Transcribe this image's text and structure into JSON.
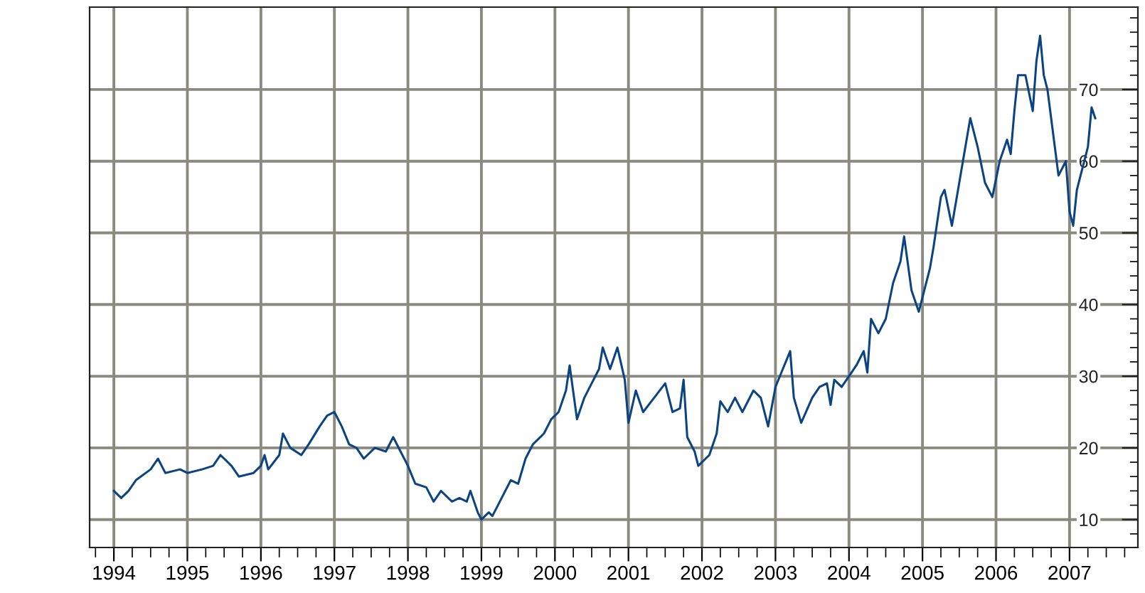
{
  "chart_data": {
    "type": "line",
    "x": [
      1994.0,
      1994.1,
      1994.2,
      1994.3,
      1994.5,
      1994.6,
      1994.7,
      1994.9,
      1995.0,
      1995.2,
      1995.35,
      1995.45,
      1995.6,
      1995.7,
      1995.9,
      1996.0,
      1996.05,
      1996.1,
      1996.25,
      1996.3,
      1996.4,
      1996.55,
      1996.65,
      1996.8,
      1996.9,
      1997.0,
      1997.1,
      1997.2,
      1997.3,
      1997.4,
      1997.55,
      1997.7,
      1997.8,
      1997.9,
      1998.0,
      1998.1,
      1998.25,
      1998.35,
      1998.45,
      1998.6,
      1998.7,
      1998.8,
      1998.85,
      1998.95,
      1999.0,
      1999.1,
      1999.15,
      1999.3,
      1999.4,
      1999.5,
      1999.6,
      1999.7,
      1999.85,
      1999.95,
      2000.05,
      2000.15,
      2000.2,
      2000.3,
      2000.4,
      2000.5,
      2000.6,
      2000.65,
      2000.75,
      2000.85,
      2000.95,
      2001.0,
      2001.1,
      2001.2,
      2001.35,
      2001.5,
      2001.6,
      2001.7,
      2001.75,
      2001.8,
      2001.9,
      2001.95,
      2002.05,
      2002.1,
      2002.2,
      2002.25,
      2002.35,
      2002.45,
      2002.55,
      2002.7,
      2002.8,
      2002.9,
      2003.0,
      2003.1,
      2003.2,
      2003.25,
      2003.35,
      2003.5,
      2003.6,
      2003.7,
      2003.75,
      2003.8,
      2003.9,
      2004.0,
      2004.1,
      2004.2,
      2004.25,
      2004.3,
      2004.4,
      2004.5,
      2004.6,
      2004.7,
      2004.75,
      2004.85,
      2004.95,
      2005.0,
      2005.1,
      2005.15,
      2005.25,
      2005.3,
      2005.4,
      2005.5,
      2005.55,
      2005.65,
      2005.75,
      2005.85,
      2005.95,
      2006.05,
      2006.15,
      2006.2,
      2006.25,
      2006.3,
      2006.4,
      2006.5,
      2006.55,
      2006.6,
      2006.65,
      2006.7,
      2006.8,
      2006.85,
      2006.95,
      2007.0,
      2007.05,
      2007.1,
      2007.15,
      2007.25,
      2007.3,
      2007.35
    ],
    "series": [
      {
        "color": "#0b4383",
        "values": [
          14,
          13,
          14,
          15.5,
          17,
          18.5,
          16.5,
          17,
          16.5,
          17,
          17.5,
          19,
          17.5,
          16,
          16.5,
          17.5,
          19,
          17,
          19,
          22,
          20,
          19,
          20.5,
          23,
          24.5,
          25,
          23,
          20.5,
          20,
          18.5,
          20,
          19.5,
          21.5,
          19.5,
          17.5,
          15,
          14.5,
          12.5,
          14,
          12.5,
          13,
          12.5,
          14,
          11,
          10,
          11,
          10.5,
          13.5,
          15.5,
          15,
          18.5,
          20.5,
          22,
          24,
          25,
          28,
          31.5,
          24,
          27,
          29,
          31,
          34,
          31,
          34,
          29.5,
          23.5,
          28,
          25,
          27,
          29,
          25,
          25.5,
          29.5,
          21.5,
          19.5,
          17.5,
          18.5,
          19,
          22,
          26.5,
          25,
          27,
          25,
          28,
          27,
          23,
          28.5,
          31,
          33.5,
          27,
          23.5,
          27,
          28.5,
          29,
          26,
          29.5,
          28.5,
          30,
          31.5,
          33.5,
          30.5,
          38,
          36,
          38,
          43,
          46,
          49.5,
          42,
          39,
          41,
          45,
          48,
          55,
          56,
          51,
          57,
          60,
          66,
          62,
          57,
          55,
          60,
          63,
          61,
          67,
          72,
          72,
          67,
          74,
          77.5,
          72,
          70,
          62,
          58,
          60,
          53,
          51,
          56,
          58,
          62,
          67.5,
          66
        ]
      }
    ],
    "xlim": [
      1993.67,
      2007.93
    ],
    "ylim": [
      6.1,
      81.5
    ],
    "xticks": [
      1994,
      1995,
      1996,
      1997,
      1998,
      1999,
      2000,
      2001,
      2002,
      2003,
      2004,
      2005,
      2006,
      2007
    ],
    "yticks": [
      10,
      20,
      30,
      40,
      50,
      60,
      70
    ],
    "grid": true,
    "marker": "none",
    "line_style": "solid",
    "legend": false
  }
}
